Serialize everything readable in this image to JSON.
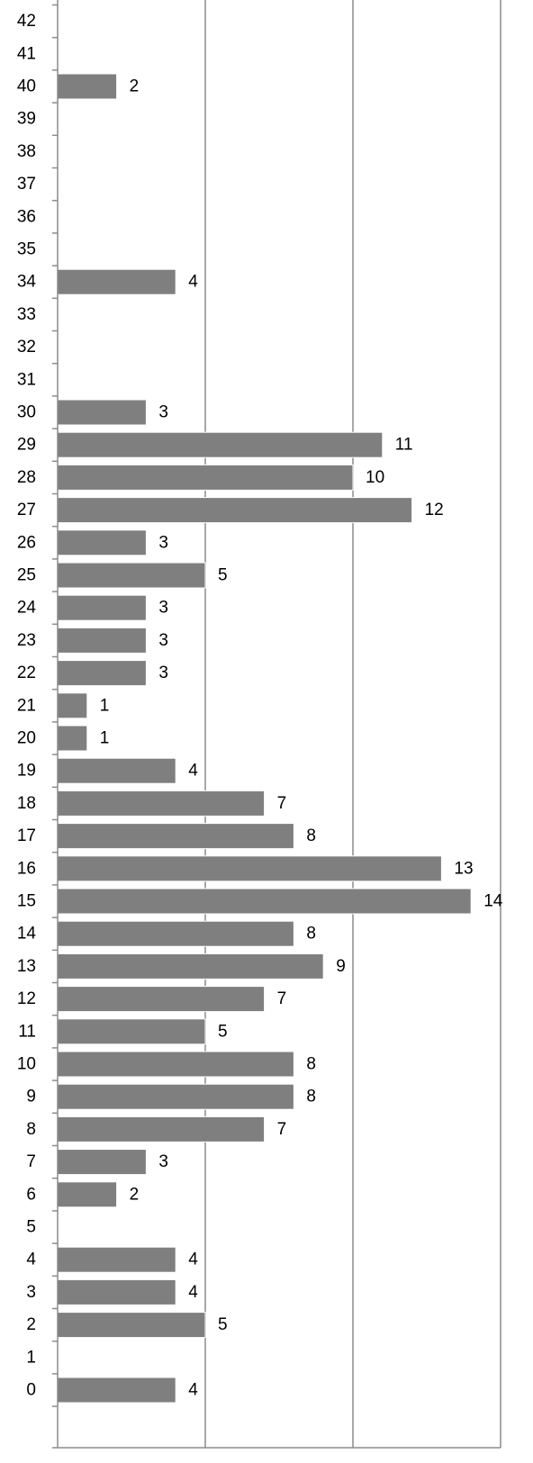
{
  "chart_data": {
    "type": "bar",
    "orientation": "horizontal",
    "categories": [
      "0",
      "1",
      "2",
      "3",
      "4",
      "5",
      "6",
      "7",
      "8",
      "9",
      "10",
      "11",
      "12",
      "13",
      "14",
      "15",
      "16",
      "17",
      "18",
      "19",
      "20",
      "21",
      "22",
      "23",
      "24",
      "25",
      "26",
      "27",
      "28",
      "29",
      "30",
      "31",
      "32",
      "33",
      "34",
      "35",
      "36",
      "37",
      "38",
      "39",
      "40",
      "41",
      "42"
    ],
    "values": [
      4,
      null,
      5,
      4,
      4,
      null,
      2,
      3,
      7,
      8,
      8,
      5,
      7,
      9,
      8,
      14,
      13,
      8,
      7,
      4,
      1,
      1,
      3,
      3,
      3,
      5,
      3,
      12,
      10,
      11,
      3,
      null,
      null,
      null,
      4,
      null,
      null,
      null,
      null,
      null,
      2,
      null,
      null
    ],
    "data_labels": [
      "4",
      "",
      "5",
      "4",
      "4",
      "",
      "2",
      "3",
      "7",
      "8",
      "8",
      "5",
      "7",
      "9",
      "8",
      "14",
      "13",
      "8",
      "7",
      "4",
      "1",
      "1",
      "3",
      "3",
      "3",
      "5",
      "3",
      "12",
      "10",
      "11",
      "3",
      "",
      "",
      "",
      "4",
      "",
      "",
      "",
      "",
      "",
      "2",
      "",
      ""
    ],
    "xlim": [
      0,
      15
    ],
    "x_gridlines": [
      0,
      5,
      10,
      15
    ],
    "grid": true,
    "legend": "none",
    "title": "",
    "xlabel": "",
    "ylabel": "",
    "colors": {
      "bar": "#7f7f7f",
      "bar_edge": "#ffffff",
      "grid": "#8c8c8c",
      "axis": "#8c8c8c",
      "text": "#000000"
    }
  }
}
